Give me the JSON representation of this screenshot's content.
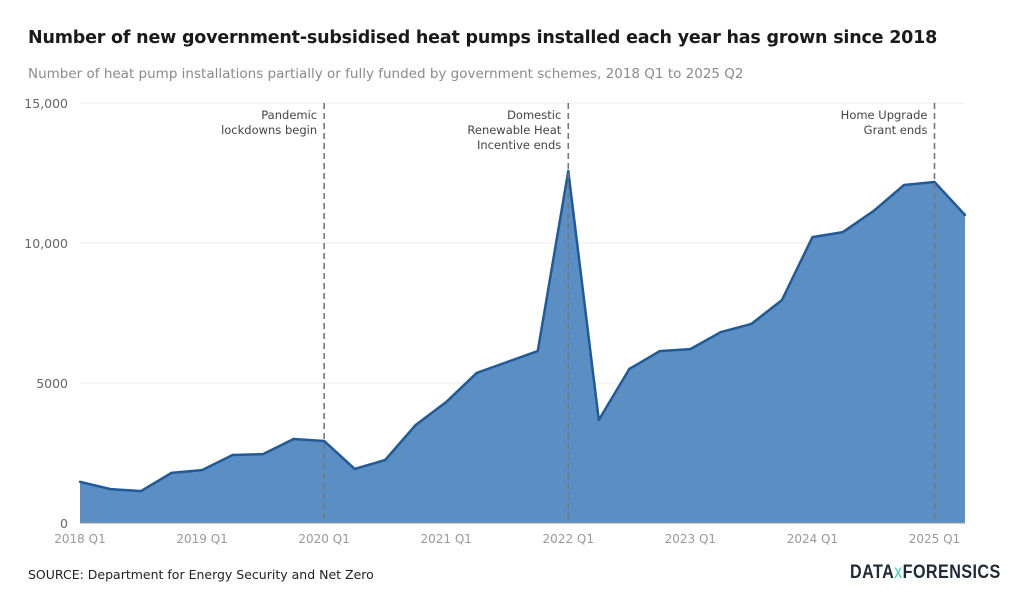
{
  "title": "Number of new government-subsidised heat pumps installed each year has grown since 2018",
  "subtitle": "Number of heat pump installations partially or fully funded by government schemes, 2018 Q1 to 2025 Q2",
  "source": "SOURCE: Department for Energy Security and Net Zero",
  "logo": {
    "left": "DATA",
    "mid": "x",
    "right": "FORENSICS"
  },
  "colors": {
    "fill": "#5b8fc3",
    "line": "#1f5a99",
    "annotation": "#777777"
  },
  "chart_data": {
    "type": "area",
    "title": "Number of new government-subsidised heat pumps installed each year has grown since 2018",
    "ylim": [
      0,
      15000
    ],
    "yticks": [
      0,
      5000,
      10000,
      15000
    ],
    "ytick_labels": [
      "0",
      "5000",
      "10,000",
      "15,000"
    ],
    "xtick_labels": [
      "2018 Q1",
      "2019 Q1",
      "2020 Q1",
      "2021 Q1",
      "2022 Q1",
      "2023 Q1",
      "2024 Q1",
      "2025 Q1"
    ],
    "grid": true,
    "x": [
      "2018 Q1",
      "2018 Q2",
      "2018 Q3",
      "2018 Q4",
      "2019 Q1",
      "2019 Q2",
      "2019 Q3",
      "2019 Q4",
      "2020 Q1",
      "2020 Q2",
      "2020 Q3",
      "2020 Q4",
      "2021 Q1",
      "2021 Q2",
      "2021 Q3",
      "2021 Q4",
      "2022 Q1",
      "2022 Q2",
      "2022 Q3",
      "2022 Q4",
      "2023 Q1",
      "2023 Q2",
      "2023 Q3",
      "2023 Q4",
      "2024 Q1",
      "2024 Q2",
      "2024 Q3",
      "2024 Q4",
      "2025 Q1",
      "2025 Q2"
    ],
    "values": [
      1470,
      1210,
      1140,
      1790,
      1890,
      2430,
      2460,
      3000,
      2930,
      1930,
      2250,
      3500,
      4320,
      5360,
      5750,
      6140,
      12570,
      3680,
      5500,
      6140,
      6210,
      6820,
      7110,
      7960,
      10210,
      10390,
      11140,
      12070,
      12180,
      11000
    ],
    "annotations": [
      {
        "x": "2020 Q1",
        "lines": [
          "Pandemic",
          "lockdowns begin"
        ]
      },
      {
        "x": "2022 Q1",
        "lines": [
          "Domestic",
          "Renewable Heat",
          "Incentive ends"
        ]
      },
      {
        "x": "2025 Q1",
        "lines": [
          "Home Upgrade",
          "Grant ends"
        ]
      }
    ]
  }
}
